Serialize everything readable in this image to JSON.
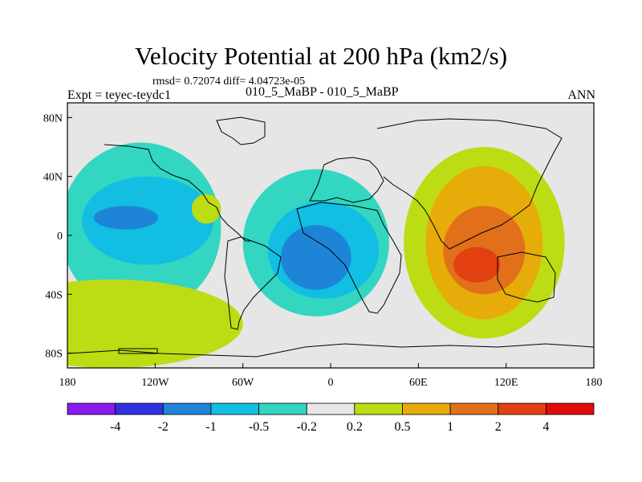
{
  "header": {
    "title": "Velocity Potential at 200 hPa (km2/s)",
    "stats": "rmsd= 0.72074 diff= 4.04723e-05",
    "experiment": "Expt = teyec-teydc1",
    "case_string": "010_5_MaBP - 010_5_MaBP",
    "season": "ANN"
  },
  "chart_data": {
    "type": "heatmap",
    "title": "Velocity Potential at 200 hPa (km2/s)",
    "subtitle": "010_5_MaBP - 010_5_MaBP",
    "xlabel": "",
    "ylabel": "",
    "x_range": [
      -180,
      180
    ],
    "y_range": [
      -90,
      90
    ],
    "x_ticks": [
      {
        "value": -180,
        "label": "180"
      },
      {
        "value": -120,
        "label": "120W"
      },
      {
        "value": -60,
        "label": "60W"
      },
      {
        "value": 0,
        "label": "0"
      },
      {
        "value": 60,
        "label": "60E"
      },
      {
        "value": 120,
        "label": "120E"
      },
      {
        "value": 180,
        "label": "180"
      }
    ],
    "y_ticks": [
      {
        "value": 80,
        "label": "80N"
      },
      {
        "value": 40,
        "label": "40N"
      },
      {
        "value": 0,
        "label": "0"
      },
      {
        "value": -40,
        "label": "40S"
      },
      {
        "value": -80,
        "label": "80S"
      }
    ],
    "colorbar": {
      "colors": [
        "#8a1aee",
        "#2f31e0",
        "#1e84d8",
        "#12bee2",
        "#33d6c0",
        "#e6e6e6",
        "#bedc14",
        "#e6ac0a",
        "#e2701a",
        "#e24010",
        "#e00a0a"
      ],
      "labels": [
        "-4",
        "-2",
        "-1",
        "-0.5",
        "-0.2",
        "0.2",
        "0.5",
        "1",
        "2",
        "4"
      ]
    },
    "background_color": "#e6e6e6",
    "regions": [
      {
        "name": "pacific-east-negative",
        "lon": -130,
        "lat": 5,
        "rx": 55,
        "ry": 58,
        "level": 4
      },
      {
        "name": "pacific-east-negative-mid",
        "lon": -125,
        "lat": 10,
        "rx": 45,
        "ry": 30,
        "level": 3
      },
      {
        "name": "pacific-east-negative-core",
        "lon": -140,
        "lat": 12,
        "rx": 22,
        "ry": 8,
        "level": 2
      },
      {
        "name": "atlantic-negative",
        "lon": -10,
        "lat": -5,
        "rx": 50,
        "ry": 50,
        "level": 4
      },
      {
        "name": "atlantic-negative-mid",
        "lon": -5,
        "lat": -10,
        "rx": 38,
        "ry": 33,
        "level": 3
      },
      {
        "name": "atlantic-negative-core",
        "lon": -10,
        "lat": -15,
        "rx": 24,
        "ry": 22,
        "level": 2
      },
      {
        "name": "indian-ocean-positive",
        "lon": 105,
        "lat": -5,
        "rx": 55,
        "ry": 65,
        "level": 6
      },
      {
        "name": "indian-ocean-positive-mid",
        "lon": 105,
        "lat": -5,
        "rx": 40,
        "ry": 52,
        "level": 7
      },
      {
        "name": "indian-ocean-positive-high",
        "lon": 105,
        "lat": -10,
        "rx": 28,
        "ry": 30,
        "level": 8
      },
      {
        "name": "indian-ocean-positive-core",
        "lon": 100,
        "lat": -20,
        "rx": 16,
        "ry": 12,
        "level": 9
      },
      {
        "name": "south-pacific-positive",
        "lon": -150,
        "lat": -60,
        "rx": 90,
        "ry": 30,
        "level": 6
      },
      {
        "name": "north-pacific-positive",
        "lon": -85,
        "lat": 18,
        "rx": 10,
        "ry": 10,
        "level": 6
      }
    ]
  }
}
